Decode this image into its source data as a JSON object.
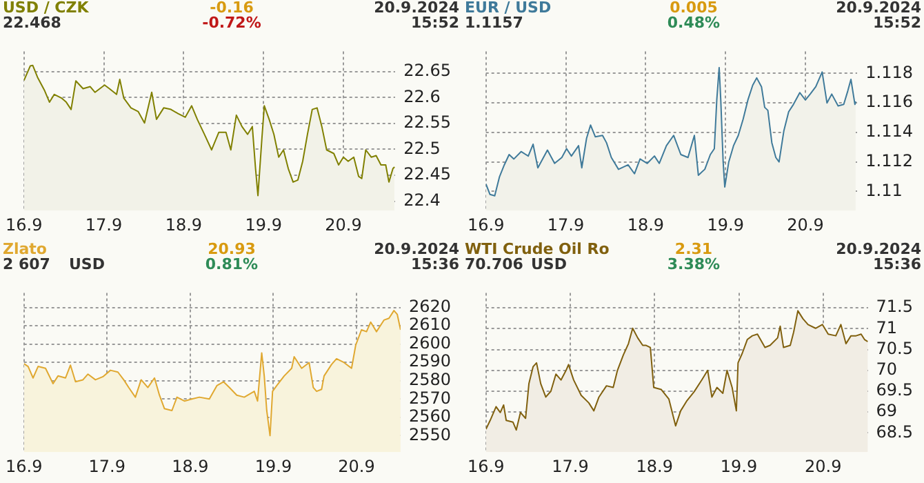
{
  "chart_data": [
    {
      "type": "area",
      "title": "USD / CZK",
      "subtitle": "22.468",
      "annotations": [
        "-0.16",
        "-0.72%",
        "20.9.2024",
        "15:52"
      ],
      "x": [
        "2024-09-16T00:00",
        "2024-09-16T01:55",
        "2024-09-16T02:38",
        "2024-09-16T04:05",
        "2024-09-16T06:14",
        "2024-09-16T07:41",
        "2024-09-16T09:07",
        "2024-09-16T11:17",
        "2024-09-16T12:43",
        "2024-09-16T14:10",
        "2024-09-16T15:36",
        "2024-09-16T17:46",
        "2024-09-16T19:55",
        "2024-09-16T21:22",
        "2024-09-17T00:14",
        "2024-09-17T01:41",
        "2024-09-17T03:50",
        "2024-09-17T04:48",
        "2024-09-17T06:00",
        "2024-09-17T08:10",
        "2024-09-17T10:19",
        "2024-09-17T12:14",
        "2024-09-17T14:24",
        "2024-09-17T15:50",
        "2024-09-17T18:00",
        "2024-09-17T20:10",
        "2024-09-17T22:19",
        "2024-09-18T00:29",
        "2024-09-18T02:24",
        "2024-09-18T04:05",
        "2024-09-18T06:14",
        "2024-09-18T08:24",
        "2024-09-18T10:34",
        "2024-09-18T12:43",
        "2024-09-18T14:10",
        "2024-09-18T15:50",
        "2024-09-18T17:31",
        "2024-09-18T19:12",
        "2024-09-18T20:38",
        "2024-09-18T21:36",
        "2024-09-18T22:19",
        "2024-09-18T23:31",
        "2024-09-19T00:14",
        "2024-09-19T01:41",
        "2024-09-19T03:07",
        "2024-09-19T04:34",
        "2024-09-19T06:00",
        "2024-09-19T07:26",
        "2024-09-19T08:53",
        "2024-09-19T10:19",
        "2024-09-19T11:46",
        "2024-09-19T13:12",
        "2024-09-19T14:38",
        "2024-09-19T16:05",
        "2024-09-19T17:31",
        "2024-09-19T18:58",
        "2024-09-19T21:07",
        "2024-09-19T22:34",
        "2024-09-20T00:00",
        "2024-09-20T01:26",
        "2024-09-20T03:07",
        "2024-09-20T04:34",
        "2024-09-20T05:31",
        "2024-09-20T06:43",
        "2024-09-20T08:24",
        "2024-09-20T09:50",
        "2024-09-20T11:17",
        "2024-09-20T12:43",
        "2024-09-20T13:41",
        "2024-09-20T14:53",
        "2024-09-20T15:22"
      ],
      "series": [
        {
          "color": "#808000",
          "values": [
            22.633,
            22.661,
            22.662,
            22.639,
            22.613,
            22.591,
            22.606,
            22.599,
            22.591,
            22.577,
            22.632,
            22.617,
            22.621,
            22.61,
            22.624,
            22.617,
            22.606,
            22.635,
            22.599,
            22.58,
            22.573,
            22.551,
            22.61,
            22.558,
            22.58,
            22.577,
            22.569,
            22.562,
            22.584,
            22.558,
            22.529,
            22.499,
            22.533,
            22.533,
            22.499,
            22.566,
            22.544,
            22.529,
            22.544,
            22.463,
            22.411,
            22.522,
            22.584,
            22.558,
            22.529,
            22.485,
            22.499,
            22.463,
            22.437,
            22.441,
            22.477,
            22.529,
            22.577,
            22.58,
            22.544,
            22.499,
            22.492,
            22.47,
            22.485,
            22.477,
            22.485,
            22.448,
            22.444,
            22.499,
            22.485,
            22.488,
            22.47,
            22.47,
            22.437,
            22.463,
            22.466
          ]
        }
      ],
      "xlim": [
        "2024-09-16T00:00",
        "2024-09-20T15:36"
      ],
      "xticks": [
        {
          "value": "2024-09-16T00:00",
          "label": "16.9"
        },
        {
          "value": "2024-09-17T00:00",
          "label": "17.9"
        },
        {
          "value": "2024-09-18T00:00",
          "label": "18.9"
        },
        {
          "value": "2024-09-19T00:00",
          "label": "19.9"
        },
        {
          "value": "2024-09-20T00:00",
          "label": "20.9"
        }
      ],
      "ylim": [
        22.382,
        22.689
      ],
      "yticks": [
        22.4,
        22.45,
        22.5,
        22.55,
        22.6,
        22.65
      ],
      "grid": true,
      "legend": false
    },
    {
      "type": "area",
      "title": "EUR / USD",
      "subtitle": "1.1157",
      "annotations": [
        "0.005",
        "0.48%",
        "20.9.2024",
        "15:52"
      ],
      "x": [
        "2024-09-16T00:00",
        "2024-09-16T01:12",
        "2024-09-16T02:38",
        "2024-09-16T04:05",
        "2024-09-16T05:31",
        "2024-09-16T06:58",
        "2024-09-16T08:24",
        "2024-09-16T10:34",
        "2024-09-16T12:43",
        "2024-09-16T14:10",
        "2024-09-16T15:36",
        "2024-09-16T18:29",
        "2024-09-16T20:38",
        "2024-09-16T22:48",
        "2024-09-17T00:14",
        "2024-09-17T01:41",
        "2024-09-17T03:50",
        "2024-09-17T04:48",
        "2024-09-17T06:14",
        "2024-09-17T07:26",
        "2024-09-17T08:53",
        "2024-09-17T11:02",
        "2024-09-17T12:14",
        "2024-09-17T13:41",
        "2024-09-17T15:50",
        "2024-09-17T18:43",
        "2024-09-17T20:38",
        "2024-09-17T22:19",
        "2024-09-18T00:29",
        "2024-09-18T02:38",
        "2024-09-18T04:05",
        "2024-09-18T06:14",
        "2024-09-18T08:24",
        "2024-09-18T10:34",
        "2024-09-18T12:43",
        "2024-09-18T14:38",
        "2024-09-18T15:50",
        "2024-09-18T17:46",
        "2024-09-18T19:26",
        "2024-09-18T20:38",
        "2024-09-18T21:22",
        "2024-09-18T22:05",
        "2024-09-18T22:34",
        "2024-09-18T23:17",
        "2024-09-18T23:46",
        "2024-09-19T00:58",
        "2024-09-19T02:24",
        "2024-09-19T03:50",
        "2024-09-19T05:17",
        "2024-09-19T06:43",
        "2024-09-19T08:10",
        "2024-09-19T09:22",
        "2024-09-19T10:48",
        "2024-09-19T11:46",
        "2024-09-19T12:43",
        "2024-09-19T13:55",
        "2024-09-19T15:07",
        "2024-09-19T16:05",
        "2024-09-19T17:31",
        "2024-09-19T18:58",
        "2024-09-19T20:24",
        "2024-09-19T22:19",
        "2024-09-20T00:00",
        "2024-09-20T01:26",
        "2024-09-20T03:07",
        "2024-09-20T05:02",
        "2024-09-20T06:29",
        "2024-09-20T07:55",
        "2024-09-20T09:50",
        "2024-09-20T11:31",
        "2024-09-20T12:43",
        "2024-09-20T13:41",
        "2024-09-20T14:53",
        "2024-09-20T15:07"
      ],
      "series": [
        {
          "color": "#3f7a9a",
          "values": [
            1.1105,
            1.1098,
            1.1097,
            1.111,
            1.1118,
            1.1125,
            1.1122,
            1.1127,
            1.1124,
            1.1132,
            1.1116,
            1.1128,
            1.1119,
            1.1123,
            1.1129,
            1.1124,
            1.1131,
            1.1116,
            1.1136,
            1.1145,
            1.1137,
            1.1138,
            1.1133,
            1.1123,
            1.1115,
            1.1118,
            1.1112,
            1.1122,
            1.1119,
            1.1124,
            1.1119,
            1.1131,
            1.1138,
            1.1125,
            1.1123,
            1.1138,
            1.1111,
            1.1115,
            1.1125,
            1.1129,
            1.1162,
            1.1184,
            1.1162,
            1.112,
            1.1103,
            1.112,
            1.1131,
            1.1138,
            1.1149,
            1.1162,
            1.1172,
            1.1177,
            1.1171,
            1.1157,
            1.1155,
            1.1133,
            1.1123,
            1.112,
            1.1141,
            1.1154,
            1.1159,
            1.1167,
            1.1162,
            1.1166,
            1.1171,
            1.1181,
            1.116,
            1.1166,
            1.1158,
            1.1159,
            1.1168,
            1.1176,
            1.1159,
            1.1161
          ]
        }
      ],
      "xlim": [
        "2024-09-16T00:00",
        "2024-09-20T15:36"
      ],
      "xticks": [
        {
          "value": "2024-09-16T00:00",
          "label": "16.9"
        },
        {
          "value": "2024-09-17T00:00",
          "label": "17.9"
        },
        {
          "value": "2024-09-18T00:00",
          "label": "18.9"
        },
        {
          "value": "2024-09-19T00:00",
          "label": "19.9"
        },
        {
          "value": "2024-09-20T00:00",
          "label": "20.9"
        }
      ],
      "ylim": [
        1.1087,
        1.1195
      ],
      "yticks": [
        1.11,
        1.112,
        1.114,
        1.116,
        1.118
      ],
      "grid": true,
      "legend": false
    },
    {
      "type": "area",
      "title": "Zlato",
      "subtitle": "2 607",
      "annotations": [
        "20.93",
        "0.81%",
        "20.9.2024",
        "15:36",
        "USD"
      ],
      "x": [
        "2024-09-16T00:00",
        "2024-09-16T01:12",
        "2024-09-16T02:38",
        "2024-09-16T04:05",
        "2024-09-16T06:14",
        "2024-09-16T08:24",
        "2024-09-16T09:50",
        "2024-09-16T12:00",
        "2024-09-16T13:26",
        "2024-09-16T14:53",
        "2024-09-16T17:02",
        "2024-09-16T18:29",
        "2024-09-16T20:38",
        "2024-09-16T22:48",
        "2024-09-17T00:58",
        "2024-09-17T03:07",
        "2024-09-17T04:48",
        "2024-09-17T06:14",
        "2024-09-17T08:10",
        "2024-09-17T09:50",
        "2024-09-17T11:46",
        "2024-09-17T13:41",
        "2024-09-17T15:07",
        "2024-09-17T16:34",
        "2024-09-17T18:43",
        "2024-09-17T20:10",
        "2024-09-17T22:19",
        "2024-09-18T00:29",
        "2024-09-18T02:38",
        "2024-09-18T05:31",
        "2024-09-18T07:41",
        "2024-09-18T09:36",
        "2024-09-18T11:17",
        "2024-09-18T13:26",
        "2024-09-18T15:36",
        "2024-09-18T18:29",
        "2024-09-18T19:26",
        "2024-09-18T20:38",
        "2024-09-18T21:22",
        "2024-09-18T22:05",
        "2024-09-18T23:02",
        "2024-09-18T23:46",
        "2024-09-19T00:58",
        "2024-09-19T03:07",
        "2024-09-19T05:17",
        "2024-09-19T06:00",
        "2024-09-19T08:10",
        "2024-09-19T10:19",
        "2024-09-19T11:31",
        "2024-09-19T12:29",
        "2024-09-19T13:55",
        "2024-09-19T14:38",
        "2024-09-19T16:48",
        "2024-09-19T18:14",
        "2024-09-19T20:24",
        "2024-09-19T22:34",
        "2024-09-19T23:46",
        "2024-09-20T01:26",
        "2024-09-20T02:53",
        "2024-09-20T04:05",
        "2024-09-20T05:46",
        "2024-09-20T07:55",
        "2024-09-20T09:22",
        "2024-09-20T10:48",
        "2024-09-20T11:46",
        "2024-09-20T12:43"
      ],
      "series": [
        {
          "color": "#e0a830",
          "values": [
            2589.3,
            2587.8,
            2581.5,
            2587.8,
            2586.8,
            2578.4,
            2582.6,
            2581.5,
            2588.5,
            2579.4,
            2580.5,
            2583.6,
            2580.5,
            2582.2,
            2585.7,
            2584.7,
            2580.5,
            2576.3,
            2571.0,
            2580.5,
            2576.3,
            2581.5,
            2572.1,
            2564.7,
            2563.7,
            2571.0,
            2568.9,
            2570.0,
            2571.0,
            2570.0,
            2577.3,
            2579.4,
            2576.3,
            2572.1,
            2571.0,
            2574.2,
            2568.9,
            2595.2,
            2582.6,
            2563.7,
            2550.0,
            2574.2,
            2577.3,
            2582.6,
            2586.8,
            2593.1,
            2586.8,
            2589.9,
            2576.3,
            2574.2,
            2575.3,
            2582.6,
            2588.9,
            2592.0,
            2589.9,
            2586.8,
            2599.4,
            2607.8,
            2606.8,
            2612.0,
            2606.8,
            2613.1,
            2614.1,
            2618.3,
            2616.2,
            2607.8
          ]
        }
      ],
      "xlim": [
        "2024-09-16T00:00",
        "2024-09-20T12:43"
      ],
      "xticks": [
        {
          "value": "2024-09-16T00:00",
          "label": "16.9"
        },
        {
          "value": "2024-09-17T00:00",
          "label": "17.9"
        },
        {
          "value": "2024-09-18T00:00",
          "label": "18.9"
        },
        {
          "value": "2024-09-19T00:00",
          "label": "19.9"
        },
        {
          "value": "2024-09-20T00:00",
          "label": "20.9"
        }
      ],
      "ylim": [
        2541,
        2628
      ],
      "yticks": [
        2550,
        2560,
        2570,
        2580,
        2590,
        2600,
        2610,
        2620
      ],
      "grid": true,
      "legend": false
    },
    {
      "type": "area",
      "title": "WTI Crude Oil Ro",
      "subtitle": "70.706",
      "annotations": [
        "2.31",
        "3.38%",
        "20.9.2024",
        "15:36",
        "USD"
      ],
      "x": [
        "2024-09-16T00:00",
        "2024-09-16T01:12",
        "2024-09-16T02:53",
        "2024-09-16T04:05",
        "2024-09-16T05:02",
        "2024-09-16T05:46",
        "2024-09-16T07:41",
        "2024-09-16T08:38",
        "2024-09-16T09:50",
        "2024-09-16T11:17",
        "2024-09-16T12:14",
        "2024-09-16T13:26",
        "2024-09-16T14:24",
        "2024-09-16T15:36",
        "2024-09-16T17:02",
        "2024-09-16T18:29",
        "2024-09-16T19:55",
        "2024-09-16T21:22",
        "2024-09-16T22:48",
        "2024-09-16T23:31",
        "2024-09-17T00:58",
        "2024-09-17T03:07",
        "2024-09-17T05:17",
        "2024-09-17T06:43",
        "2024-09-17T08:10",
        "2024-09-17T10:19",
        "2024-09-17T12:14",
        "2024-09-17T13:26",
        "2024-09-17T15:07",
        "2024-09-17T16:34",
        "2024-09-17T17:46",
        "2024-09-17T19:12",
        "2024-09-17T20:38",
        "2024-09-17T21:36",
        "2024-09-17T22:48",
        "2024-09-17T23:46",
        "2024-09-18T01:55",
        "2024-09-18T04:05",
        "2024-09-18T06:00",
        "2024-09-18T07:26",
        "2024-09-18T09:07",
        "2024-09-18T11:17",
        "2024-09-18T13:26",
        "2024-09-18T15:07",
        "2024-09-18T16:19",
        "2024-09-18T17:46",
        "2024-09-18T19:26",
        "2024-09-18T20:38",
        "2024-09-18T22:05",
        "2024-09-18T23:17",
        "2024-09-18T23:46",
        "2024-09-19T00:58",
        "2024-09-19T02:24",
        "2024-09-19T03:50",
        "2024-09-19T05:17",
        "2024-09-19T07:26",
        "2024-09-19T08:53",
        "2024-09-19T11:02",
        "2024-09-19T11:46",
        "2024-09-19T12:43",
        "2024-09-19T14:38",
        "2024-09-19T15:36",
        "2024-09-19T16:48",
        "2024-09-19T18:14",
        "2024-09-19T19:41",
        "2024-09-19T21:50",
        "2024-09-19T23:46",
        "2024-09-20T01:26",
        "2024-09-20T03:36",
        "2024-09-20T05:02",
        "2024-09-20T06:29",
        "2024-09-20T07:55",
        "2024-09-20T09:22",
        "2024-09-20T10:48",
        "2024-09-20T11:46",
        "2024-09-20T12:43"
      ],
      "series": [
        {
          "color": "#80600e",
          "values": [
            68.59,
            68.8,
            69.13,
            68.99,
            69.17,
            68.8,
            68.76,
            68.57,
            68.99,
            68.85,
            69.68,
            70.09,
            70.18,
            69.68,
            69.36,
            69.5,
            69.91,
            69.77,
            70.0,
            70.14,
            69.77,
            69.4,
            69.22,
            69.03,
            69.36,
            69.63,
            69.59,
            70.0,
            70.37,
            70.64,
            71.01,
            70.78,
            70.6,
            70.6,
            70.55,
            69.59,
            69.54,
            69.31,
            68.67,
            69.03,
            69.26,
            69.49,
            69.77,
            70.0,
            69.36,
            69.59,
            69.45,
            70.0,
            69.59,
            69.03,
            70.18,
            70.41,
            70.74,
            70.83,
            70.87,
            70.55,
            70.6,
            70.78,
            71.06,
            70.55,
            70.6,
            70.92,
            71.43,
            71.24,
            71.1,
            71.01,
            71.1,
            70.87,
            70.83,
            71.1,
            70.64,
            70.83,
            70.83,
            70.87,
            70.74,
            70.69
          ]
        }
      ],
      "xlim": [
        "2024-09-16T00:00",
        "2024-09-20T12:43"
      ],
      "xticks": [
        {
          "value": "2024-09-16T00:00",
          "label": "16.9"
        },
        {
          "value": "2024-09-17T00:00",
          "label": "17.9"
        },
        {
          "value": "2024-09-18T00:00",
          "label": "18.9"
        },
        {
          "value": "2024-09-19T00:00",
          "label": "19.9"
        },
        {
          "value": "2024-09-20T00:00",
          "label": "20.9"
        }
      ],
      "ylim": [
        68.04,
        71.86
      ],
      "yticks": [
        68.5,
        69,
        69.5,
        70,
        70.5,
        71,
        71.5
      ],
      "grid": true,
      "legend": false
    }
  ]
}
